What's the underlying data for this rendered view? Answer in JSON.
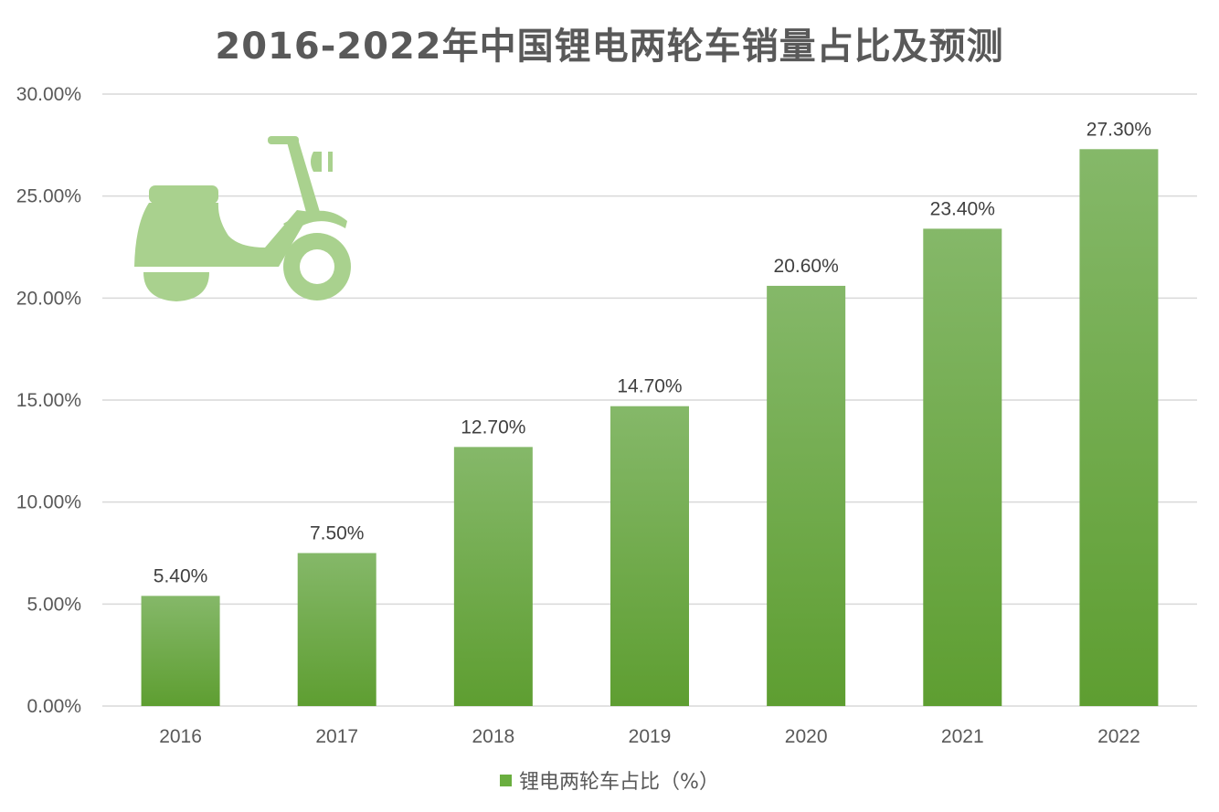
{
  "chart_data": {
    "type": "bar",
    "title": "2016-2022年中国锂电两轮车销量占比及预测",
    "categories": [
      "2016",
      "2017",
      "2018",
      "2019",
      "2020",
      "2021",
      "2022"
    ],
    "series": [
      {
        "name": "锂电两轮车占比（%）",
        "values": [
          5.4,
          7.5,
          12.7,
          14.7,
          20.6,
          23.4,
          27.3
        ],
        "labels": [
          "5.40%",
          "7.50%",
          "12.70%",
          "14.70%",
          "20.60%",
          "23.40%",
          "27.30%"
        ]
      }
    ],
    "yticks": [
      "0.00%",
      "5.00%",
      "10.00%",
      "15.00%",
      "20.00%",
      "25.00%",
      "30.00%"
    ],
    "ylim": [
      0,
      30
    ],
    "grid": true,
    "legend_position": "bottom",
    "xlabel": "",
    "ylabel": ""
  },
  "colors": {
    "bar_top": "#85b869",
    "bar_bottom": "#5e9e31",
    "grid": "#d9d9d9",
    "icon": "#a9d18e",
    "legend_swatch": "#6aae3f"
  },
  "icon": "electric-scooter-icon"
}
